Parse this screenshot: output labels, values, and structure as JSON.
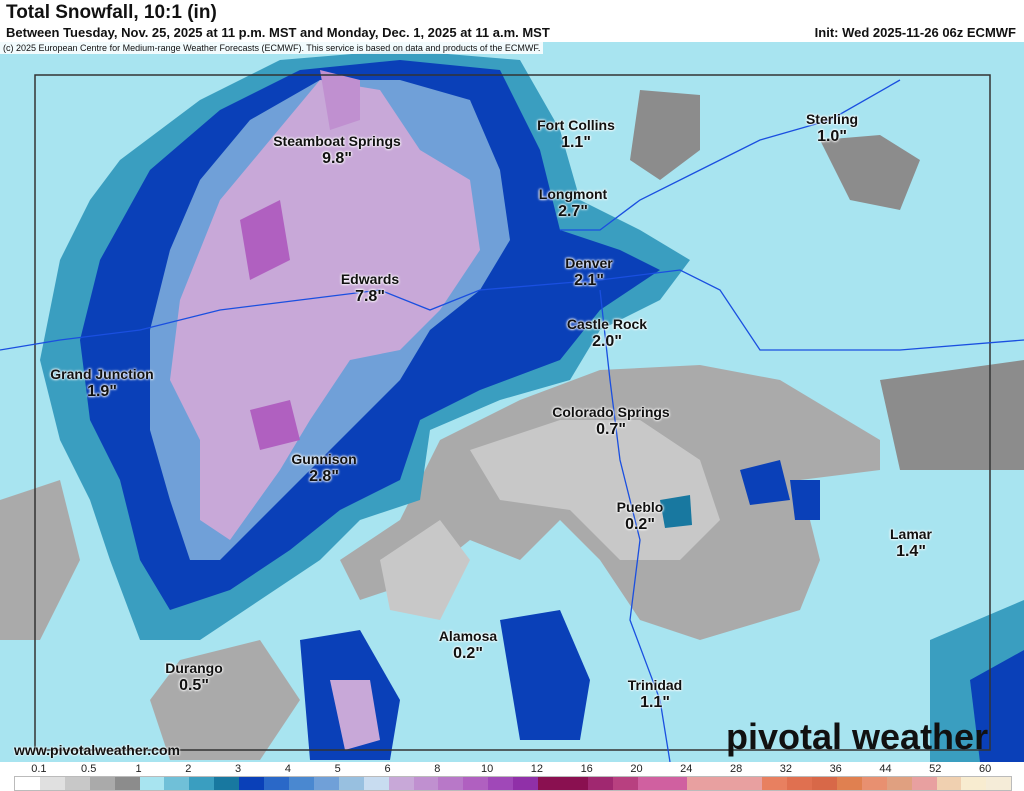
{
  "header": {
    "title": "Total Snowfall, 10:1 (in)",
    "subtitle": "Between Tuesday, Nov. 25, 2025 at 11 p.m. MST and Monday, Dec. 1, 2025 at 11 a.m. MST",
    "init": "Init: Wed 2025-11-26 06z ECMWF",
    "copyright": "(c) 2025 European Centre for Medium-range Weather Forecasts (ECMWF). This service is based on data and products of the ECMWF."
  },
  "cities": [
    {
      "name": "Steamboat Springs",
      "value": "9.8\""
    },
    {
      "name": "Fort Collins",
      "value": "1.1\""
    },
    {
      "name": "Sterling",
      "value": "1.0\""
    },
    {
      "name": "Longmont",
      "value": "2.7\""
    },
    {
      "name": "Denver",
      "value": "2.1\""
    },
    {
      "name": "Edwards",
      "value": "7.8\""
    },
    {
      "name": "Castle Rock",
      "value": "2.0\""
    },
    {
      "name": "Grand Junction",
      "value": "1.9\""
    },
    {
      "name": "Colorado Springs",
      "value": "0.7\""
    },
    {
      "name": "Gunnison",
      "value": "2.8\""
    },
    {
      "name": "Pueblo",
      "value": "0.2\""
    },
    {
      "name": "Lamar",
      "value": "1.4\""
    },
    {
      "name": "Alamosa",
      "value": "0.2\""
    },
    {
      "name": "Durango",
      "value": "0.5\""
    },
    {
      "name": "Trinidad",
      "value": "1.1\""
    }
  ],
  "footer": {
    "site": "www.pivotalweather.com",
    "logo": "pivotal weather"
  },
  "legend": {
    "ticks": [
      "0.1",
      "0.5",
      "1",
      "2",
      "3",
      "4",
      "5",
      "6",
      "8",
      "10",
      "12",
      "16",
      "20",
      "24",
      "28",
      "32",
      "36",
      "44",
      "52",
      "60"
    ],
    "colors": [
      "#ffffff",
      "#e0e0e0",
      "#c8c8c8",
      "#aaaaaa",
      "#8c8c8c",
      "#a8e4f0",
      "#70c0d8",
      "#3a9ec0",
      "#1878a0",
      "#0a40b8",
      "#2a68c8",
      "#4a88d0",
      "#70a0d8",
      "#98c0e0",
      "#c8dcf0",
      "#c8a8d8",
      "#c090d0",
      "#b878c8",
      "#b060c0",
      "#a048b8",
      "#9030a8",
      "#8a1050",
      "#8a1050",
      "#a02870",
      "#b84080",
      "#d060a0",
      "#d060a0",
      "#e8a0a0",
      "#e8a0a0",
      "#e8a0a0",
      "#e88060",
      "#e07050",
      "#d86848",
      "#e08050",
      "#e89070",
      "#e0a080",
      "#e8a0a0",
      "#f0d0b0",
      "#f8ecd0",
      "#f5ecd8"
    ]
  }
}
